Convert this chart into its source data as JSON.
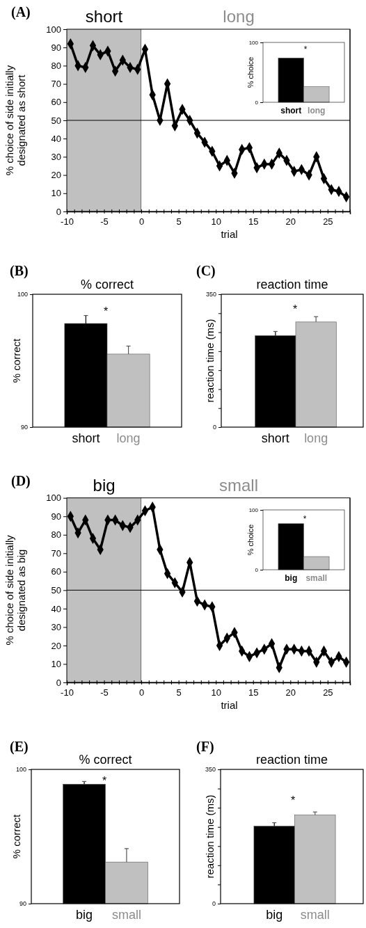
{
  "chart_data": [
    {
      "type": "line",
      "xlabel": "trial",
      "ylabel": "% choice of side initially designated as short",
      "annotations": [
        "(A)"
      ],
      "x": [
        -9.5,
        -8.5,
        -7.5,
        -6.5,
        -5.5,
        -4.5,
        -3.5,
        -2.5,
        -1.5,
        -0.5,
        0.5,
        1.5,
        2.5,
        3.5,
        4.5,
        5.5,
        6.5,
        7.5,
        8.5,
        9.5,
        10.5,
        11.5,
        12.5,
        13.5,
        14.5,
        15.5,
        16.5,
        17.5,
        18.5,
        19.5,
        20.5,
        21.5,
        22.5,
        23.5,
        24.5,
        25.5,
        26.5,
        27.5
      ],
      "series": [
        {
          "color": "#000000",
          "values": [
            92,
            80,
            79,
            91,
            86,
            88,
            77,
            83,
            79,
            78,
            89,
            64,
            50,
            70,
            47,
            56,
            50,
            43,
            38,
            33,
            25,
            28,
            21,
            34,
            35,
            24,
            26,
            26,
            32,
            28,
            22,
            23,
            20,
            30,
            18,
            12,
            11,
            8
          ]
        }
      ],
      "xlim": [
        -10,
        28
      ],
      "ylim": [
        0,
        100
      ],
      "xticks": [
        -10,
        {
          "value": -9,
          "label": null
        },
        {
          "value": -8,
          "label": null
        },
        {
          "value": -7,
          "label": null
        },
        {
          "value": -6,
          "label": null
        },
        -5,
        {
          "value": -4,
          "label": null
        },
        {
          "value": -3,
          "label": null
        },
        {
          "value": -2,
          "label": null
        },
        {
          "value": -1,
          "label": null
        },
        0,
        {
          "value": 1,
          "label": null
        },
        {
          "value": 2,
          "label": null
        },
        {
          "value": 3,
          "label": null
        },
        {
          "value": 4,
          "label": null
        },
        5,
        {
          "value": 6,
          "label": null
        },
        {
          "value": 7,
          "label": null
        },
        {
          "value": 8,
          "label": null
        },
        {
          "value": 9,
          "label": null
        },
        10,
        {
          "value": 11,
          "label": null
        },
        {
          "value": 12,
          "label": null
        },
        {
          "value": 13,
          "label": null
        },
        {
          "value": 14,
          "label": null
        },
        15,
        {
          "value": 16,
          "label": null
        },
        {
          "value": 17,
          "label": null
        },
        {
          "value": 18,
          "label": null
        },
        {
          "value": 19,
          "label": null
        },
        20,
        {
          "value": 21,
          "label": null
        },
        {
          "value": 22,
          "label": null
        },
        {
          "value": 23,
          "label": null
        },
        {
          "value": 24,
          "label": null
        },
        25,
        {
          "value": 26,
          "label": null
        },
        {
          "value": 27,
          "label": null
        },
        {
          "value": 28,
          "label": null
        }
      ],
      "yticks": [
        0,
        10,
        20,
        30,
        40,
        50,
        60,
        70,
        80,
        90,
        100
      ],
      "bands": [
        {
          "axis": "x",
          "from": -10,
          "to": 0,
          "label": "short",
          "color": "#c0c0c0"
        },
        {
          "axis": "x",
          "from": 0,
          "to": 28,
          "label": "long",
          "color": "#ffffff"
        }
      ],
      "ref_lines": [
        {
          "axis": "y",
          "value": 50
        }
      ],
      "marker": "diamond",
      "line_style": "solid"
    },
    {
      "type": "bar",
      "ylabel": "% choice",
      "categories": [
        "short",
        "long"
      ],
      "values": [
        74,
        26
      ],
      "colors": [
        "#000000",
        "#c0c0c0"
      ],
      "ylim": [
        0,
        100
      ],
      "yticks": [
        0,
        100
      ],
      "annotations": [
        "*"
      ]
    },
    {
      "type": "bar",
      "title": "% correct",
      "ylabel": "% correct",
      "annotations": [
        "(B)",
        "*"
      ],
      "categories": [
        "short",
        "long"
      ],
      "values": [
        97.8,
        95.5
      ],
      "colors": [
        "#000000",
        "#c0c0c0"
      ],
      "errors": [
        [
          97.8,
          98.4
        ],
        [
          95.5,
          96.1
        ]
      ],
      "ylim": [
        90,
        100
      ],
      "yticks": [
        90,
        100
      ]
    },
    {
      "type": "bar",
      "title": "reaction time",
      "ylabel": "reaction time (ms)",
      "annotations": [
        "(C)",
        "*"
      ],
      "categories": [
        "short",
        "long"
      ],
      "values": [
        241,
        277
      ],
      "colors": [
        "#000000",
        "#c0c0c0"
      ],
      "errors": [
        [
          241,
          252
        ],
        [
          277,
          291
        ]
      ],
      "ylim": [
        0,
        350
      ],
      "yticks": [
        0,
        {
          "value": 50,
          "label": null
        },
        {
          "value": 100,
          "label": null
        },
        {
          "value": 150,
          "label": null
        },
        {
          "value": 200,
          "label": null
        },
        {
          "value": 250,
          "label": null
        },
        {
          "value": 300,
          "label": null
        },
        350
      ]
    },
    {
      "type": "line",
      "xlabel": "trial",
      "ylabel": "% choice of side initially designated as big",
      "annotations": [
        "(D)"
      ],
      "x": [
        -9.5,
        -8.5,
        -7.5,
        -6.5,
        -5.5,
        -4.5,
        -3.5,
        -2.5,
        -1.5,
        -0.5,
        0.5,
        1.5,
        2.5,
        3.5,
        4.5,
        5.5,
        6.5,
        7.5,
        8.5,
        9.5,
        10.5,
        11.5,
        12.5,
        13.5,
        14.5,
        15.5,
        16.5,
        17.5,
        18.5,
        19.5,
        20.5,
        21.5,
        22.5,
        23.5,
        24.5,
        25.5,
        26.5,
        27.5
      ],
      "series": [
        {
          "color": "#000000",
          "values": [
            90,
            81,
            88,
            78,
            72,
            88,
            88,
            85,
            84,
            88,
            93,
            95,
            72,
            59,
            54,
            49,
            65,
            44,
            42,
            41,
            20,
            24,
            27,
            17,
            14,
            16,
            18,
            21,
            8,
            18,
            18,
            17,
            17,
            11,
            17,
            11,
            14,
            11
          ]
        }
      ],
      "xlim": [
        -10,
        28
      ],
      "ylim": [
        0,
        100
      ],
      "xticks": [
        -10,
        {
          "value": -9,
          "label": null
        },
        {
          "value": -8,
          "label": null
        },
        {
          "value": -7,
          "label": null
        },
        {
          "value": -6,
          "label": null
        },
        -5,
        {
          "value": -4,
          "label": null
        },
        {
          "value": -3,
          "label": null
        },
        {
          "value": -2,
          "label": null
        },
        {
          "value": -1,
          "label": null
        },
        0,
        {
          "value": 1,
          "label": null
        },
        {
          "value": 2,
          "label": null
        },
        {
          "value": 3,
          "label": null
        },
        {
          "value": 4,
          "label": null
        },
        5,
        {
          "value": 6,
          "label": null
        },
        {
          "value": 7,
          "label": null
        },
        {
          "value": 8,
          "label": null
        },
        {
          "value": 9,
          "label": null
        },
        10,
        {
          "value": 11,
          "label": null
        },
        {
          "value": 12,
          "label": null
        },
        {
          "value": 13,
          "label": null
        },
        {
          "value": 14,
          "label": null
        },
        15,
        {
          "value": 16,
          "label": null
        },
        {
          "value": 17,
          "label": null
        },
        {
          "value": 18,
          "label": null
        },
        {
          "value": 19,
          "label": null
        },
        20,
        {
          "value": 21,
          "label": null
        },
        {
          "value": 22,
          "label": null
        },
        {
          "value": 23,
          "label": null
        },
        {
          "value": 24,
          "label": null
        },
        25,
        {
          "value": 26,
          "label": null
        },
        {
          "value": 27,
          "label": null
        },
        {
          "value": 28,
          "label": null
        }
      ],
      "yticks": [
        0,
        10,
        20,
        30,
        40,
        50,
        60,
        70,
        80,
        90,
        100
      ],
      "bands": [
        {
          "axis": "x",
          "from": -10,
          "to": 0,
          "label": "big",
          "color": "#c0c0c0"
        },
        {
          "axis": "x",
          "from": 0,
          "to": 28,
          "label": "small",
          "color": "#ffffff"
        }
      ],
      "ref_lines": [
        {
          "axis": "y",
          "value": 50
        }
      ],
      "marker": "diamond",
      "line_style": "solid"
    },
    {
      "type": "bar",
      "ylabel": "% choice",
      "categories": [
        "big",
        "small"
      ],
      "values": [
        77,
        22
      ],
      "colors": [
        "#000000",
        "#c0c0c0"
      ],
      "ylim": [
        0,
        100
      ],
      "yticks": [
        0,
        100
      ],
      "annotations": [
        "*"
      ]
    },
    {
      "type": "bar",
      "title": "% correct",
      "ylabel": "% correct",
      "annotations": [
        "(E)",
        "*"
      ],
      "categories": [
        "big",
        "small"
      ],
      "values": [
        98.9,
        93.1
      ],
      "colors": [
        "#000000",
        "#c0c0c0"
      ],
      "errors": [
        [
          98.9,
          99.1
        ],
        [
          93.1,
          94.1
        ]
      ],
      "ylim": [
        90,
        100
      ],
      "yticks": [
        90,
        100
      ]
    },
    {
      "type": "bar",
      "title": "reaction time",
      "ylabel": "reaction time (ms)",
      "annotations": [
        "(F)",
        "*"
      ],
      "categories": [
        "big",
        "small"
      ],
      "values": [
        202,
        231
      ],
      "colors": [
        "#000000",
        "#c0c0c0"
      ],
      "errors": [
        [
          202,
          211
        ],
        [
          231,
          239
        ]
      ],
      "ylim": [
        0,
        350
      ],
      "yticks": [
        0,
        {
          "value": 50,
          "label": null
        },
        {
          "value": 100,
          "label": null
        },
        {
          "value": 150,
          "label": null
        },
        {
          "value": 200,
          "label": null
        },
        {
          "value": 250,
          "label": null
        },
        {
          "value": 300,
          "label": null
        },
        350
      ]
    }
  ]
}
